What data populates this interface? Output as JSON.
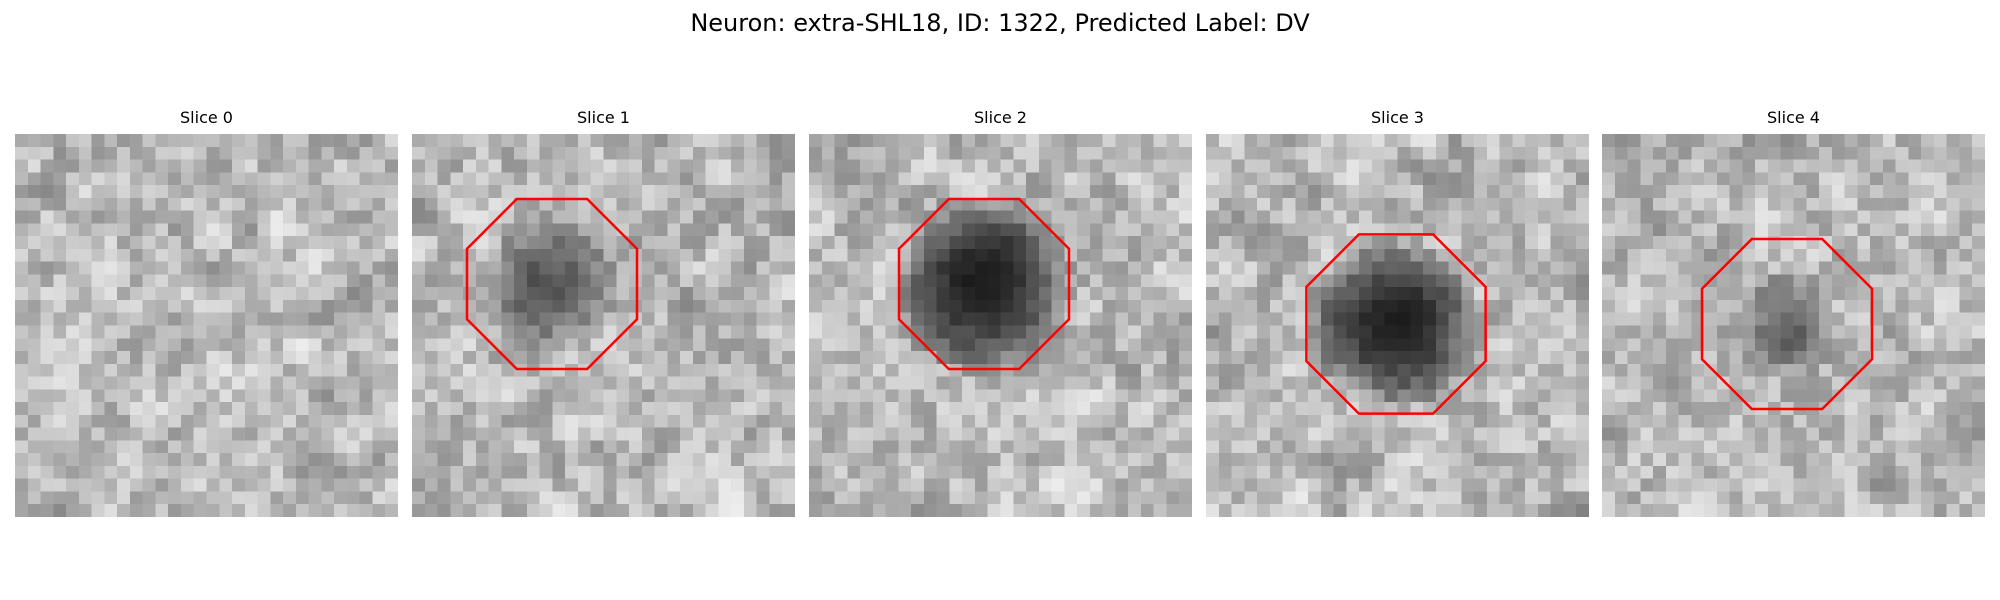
{
  "figure": {
    "title": "Neuron: extra-SHL18, ID: 1322, Predicted Label: DV"
  },
  "colors": {
    "roi_outline": "#ff0000"
  },
  "slices": [
    {
      "title": "Slice 0",
      "has_roi": false,
      "dark_center": false
    },
    {
      "title": "Slice 1",
      "has_roi": true,
      "dark_center": true
    },
    {
      "title": "Slice 2",
      "has_roi": true,
      "dark_center": true
    },
    {
      "title": "Slice 3",
      "has_roi": true,
      "dark_center": true
    },
    {
      "title": "Slice 4",
      "has_roi": true,
      "dark_center": true
    }
  ]
}
